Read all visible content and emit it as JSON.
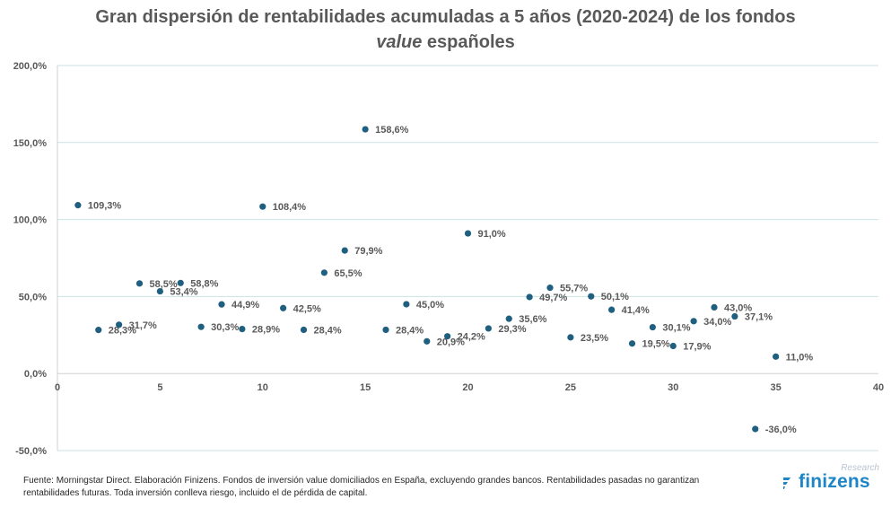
{
  "title": {
    "line1": "Gran dispersión de rentabilidades acumuladas a 5 años (2020-2024) de los fondos",
    "line2_italic": "value",
    "line2_rest": " españoles"
  },
  "footer": "Fuente: Morningstar Direct. Elaboración Finizens. Fondos de inversión value domiciliados en España, excluyendo grandes bancos. Rentabilidades pasadas no garantizan rentabilidades futuras. Toda inversión conlleva riesgo, incluido el de pérdida de capital.",
  "brand": {
    "name": "finizens",
    "sub": "Research"
  },
  "colors": {
    "point": "#1f5f7f",
    "grid": "#cde2e2",
    "axis": "#d0d0d0",
    "label": "#595959"
  },
  "chart_data": {
    "type": "scatter",
    "xlim": [
      0,
      40
    ],
    "ylim": [
      -50,
      200
    ],
    "xticks": [
      0,
      5,
      10,
      15,
      20,
      25,
      30,
      35,
      40
    ],
    "xtick_labels": [
      "0",
      "5",
      "10",
      "15",
      "20",
      "25",
      "30",
      "35",
      "40"
    ],
    "yticks": [
      -50,
      0,
      50,
      100,
      150,
      200
    ],
    "ytick_labels": [
      "-50,0%",
      "0,0%",
      "50,0%",
      "100,0%",
      "150,0%",
      "200,0%"
    ],
    "grid": "horizontal",
    "points": [
      {
        "x": 1,
        "y": 109.3,
        "label": "109,3%"
      },
      {
        "x": 2,
        "y": 28.3,
        "label": "28,3%"
      },
      {
        "x": 3,
        "y": 31.7,
        "label": "31,7%"
      },
      {
        "x": 4,
        "y": 58.5,
        "label": "58,5%"
      },
      {
        "x": 5,
        "y": 53.4,
        "label": "53,4%"
      },
      {
        "x": 6,
        "y": 58.8,
        "label": "58,8%"
      },
      {
        "x": 7,
        "y": 30.3,
        "label": "30,3%"
      },
      {
        "x": 8,
        "y": 44.9,
        "label": "44,9%"
      },
      {
        "x": 9,
        "y": 28.9,
        "label": "28,9%"
      },
      {
        "x": 10,
        "y": 108.4,
        "label": "108,4%"
      },
      {
        "x": 11,
        "y": 42.5,
        "label": "42,5%"
      },
      {
        "x": 12,
        "y": 28.4,
        "label": "28,4%"
      },
      {
        "x": 13,
        "y": 65.5,
        "label": "65,5%"
      },
      {
        "x": 14,
        "y": 79.9,
        "label": "79,9%"
      },
      {
        "x": 15,
        "y": 158.6,
        "label": "158,6%"
      },
      {
        "x": 16,
        "y": 28.4,
        "label": "28,4%"
      },
      {
        "x": 17,
        "y": 45.0,
        "label": "45,0%"
      },
      {
        "x": 18,
        "y": 20.9,
        "label": "20,9%"
      },
      {
        "x": 19,
        "y": 24.2,
        "label": "24,2%"
      },
      {
        "x": 20,
        "y": 91.0,
        "label": "91,0%"
      },
      {
        "x": 21,
        "y": 29.3,
        "label": "29,3%"
      },
      {
        "x": 22,
        "y": 35.6,
        "label": "35,6%"
      },
      {
        "x": 23,
        "y": 49.7,
        "label": "49,7%"
      },
      {
        "x": 24,
        "y": 55.7,
        "label": "55,7%"
      },
      {
        "x": 25,
        "y": 23.5,
        "label": "23,5%"
      },
      {
        "x": 26,
        "y": 50.1,
        "label": "50,1%"
      },
      {
        "x": 27,
        "y": 41.4,
        "label": "41,4%"
      },
      {
        "x": 28,
        "y": 19.5,
        "label": "19,5%"
      },
      {
        "x": 29,
        "y": 30.1,
        "label": "30,1%"
      },
      {
        "x": 30,
        "y": 17.9,
        "label": "17,9%"
      },
      {
        "x": 31,
        "y": 34.0,
        "label": "34,0%"
      },
      {
        "x": 32,
        "y": 43.0,
        "label": "43,0%"
      },
      {
        "x": 33,
        "y": 37.1,
        "label": "37,1%"
      },
      {
        "x": 34,
        "y": -36.0,
        "label": "-36,0%"
      },
      {
        "x": 35,
        "y": 11.0,
        "label": "11,0%"
      }
    ]
  }
}
